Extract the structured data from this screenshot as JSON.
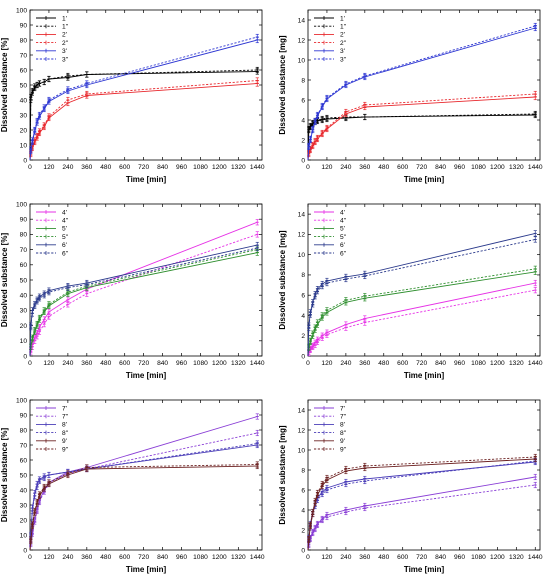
{
  "chart_data": [
    {
      "type": "line",
      "xlabel": "Time [min]",
      "ylabel": "Dissolved substance [%]",
      "xlim": [
        0,
        1470
      ],
      "ylim": [
        0,
        100
      ],
      "xticks": [
        0,
        120,
        240,
        360,
        480,
        600,
        720,
        840,
        960,
        1080,
        1200,
        1320,
        1440
      ],
      "yticks": [
        0,
        10,
        20,
        30,
        40,
        50,
        60,
        70,
        80,
        90,
        100
      ],
      "legend": "top-left",
      "x": [
        0,
        5,
        15,
        30,
        45,
        60,
        90,
        120,
        240,
        360,
        1440
      ],
      "series": [
        {
          "name": "1'",
          "color": "#000000",
          "dash": false,
          "values": [
            0,
            40,
            45,
            48,
            50,
            51,
            52,
            54,
            55,
            57,
            59
          ]
        },
        {
          "name": "1''",
          "color": "#000000",
          "dash": true,
          "values": [
            0,
            42,
            46,
            49,
            50,
            51,
            52,
            54,
            56,
            57,
            60
          ]
        },
        {
          "name": "2'",
          "color": "#e8282d",
          "dash": false,
          "values": [
            0,
            4,
            8,
            12,
            15,
            18,
            22,
            28,
            38,
            43,
            51
          ]
        },
        {
          "name": "2''",
          "color": "#e8282d",
          "dash": true,
          "values": [
            0,
            5,
            9,
            13,
            16,
            19,
            23,
            29,
            40,
            44,
            53
          ]
        },
        {
          "name": "3'",
          "color": "#2d36d2",
          "dash": false,
          "values": [
            0,
            6,
            12,
            19,
            25,
            29,
            34,
            39,
            46,
            50,
            80
          ]
        },
        {
          "name": "3''",
          "color": "#2d36d2",
          "dash": true,
          "values": [
            0,
            7,
            13,
            20,
            26,
            30,
            35,
            40,
            47,
            51,
            82
          ]
        }
      ]
    },
    {
      "type": "line",
      "xlabel": "Time [min]",
      "ylabel": "Dissolved substance [mg]",
      "xlim": [
        0,
        1470
      ],
      "ylim": [
        0,
        15
      ],
      "xticks": [
        0,
        120,
        240,
        360,
        480,
        600,
        720,
        840,
        960,
        1080,
        1200,
        1320,
        1440
      ],
      "yticks": [
        0,
        2,
        4,
        6,
        8,
        10,
        12,
        14
      ],
      "legend": "top-left",
      "x": [
        0,
        5,
        15,
        30,
        45,
        60,
        90,
        120,
        240,
        360,
        1440
      ],
      "series": [
        {
          "name": "1'",
          "color": "#000000",
          "dash": false,
          "values": [
            0,
            3.0,
            3.3,
            3.6,
            3.8,
            3.9,
            4.0,
            4.1,
            4.2,
            4.3,
            4.5
          ]
        },
        {
          "name": "1''",
          "color": "#000000",
          "dash": true,
          "values": [
            0,
            3.1,
            3.4,
            3.7,
            3.9,
            4.0,
            4.1,
            4.2,
            4.3,
            4.3,
            4.6
          ]
        },
        {
          "name": "2'",
          "color": "#e8282d",
          "dash": false,
          "values": [
            0,
            0.6,
            1.0,
            1.4,
            1.8,
            2.1,
            2.6,
            3.1,
            4.6,
            5.3,
            6.3
          ]
        },
        {
          "name": "2''",
          "color": "#e8282d",
          "dash": true,
          "values": [
            0,
            0.7,
            1.1,
            1.5,
            1.9,
            2.2,
            2.7,
            3.2,
            4.8,
            5.5,
            6.6
          ]
        },
        {
          "name": "3'",
          "color": "#2d36d2",
          "dash": false,
          "values": [
            0,
            1.3,
            2.0,
            3.0,
            3.8,
            4.4,
            5.3,
            6.1,
            7.5,
            8.3,
            13.2
          ]
        },
        {
          "name": "3''",
          "color": "#2d36d2",
          "dash": true,
          "values": [
            0,
            1.4,
            2.1,
            3.1,
            3.9,
            4.5,
            5.4,
            6.2,
            7.6,
            8.4,
            13.4
          ]
        }
      ]
    },
    {
      "type": "line",
      "xlabel": "Time [min]",
      "ylabel": "Dissolved substance [%]",
      "xlim": [
        0,
        1470
      ],
      "ylim": [
        0,
        100
      ],
      "xticks": [
        0,
        120,
        240,
        360,
        480,
        600,
        720,
        840,
        960,
        1080,
        1200,
        1320,
        1440
      ],
      "yticks": [
        0,
        10,
        20,
        30,
        40,
        50,
        60,
        70,
        80,
        90,
        100
      ],
      "legend": "top-left",
      "x": [
        0,
        5,
        15,
        30,
        45,
        60,
        90,
        120,
        240,
        360,
        1440
      ],
      "series": [
        {
          "name": "4'",
          "color": "#e632e6",
          "dash": false,
          "values": [
            0,
            4,
            8,
            12,
            15,
            19,
            24,
            29,
            37,
            44,
            88
          ]
        },
        {
          "name": "4''",
          "color": "#e632e6",
          "dash": true,
          "values": [
            0,
            3,
            6,
            10,
            13,
            16,
            21,
            26,
            34,
            41,
            80
          ]
        },
        {
          "name": "5'",
          "color": "#2f8f2f",
          "dash": false,
          "values": [
            0,
            6,
            11,
            16,
            20,
            24,
            29,
            33,
            41,
            45,
            68
          ]
        },
        {
          "name": "5''",
          "color": "#2f8f2f",
          "dash": true,
          "values": [
            0,
            6,
            12,
            17,
            21,
            25,
            30,
            34,
            42,
            46,
            70
          ]
        },
        {
          "name": "6'",
          "color": "#2b3a8c",
          "dash": false,
          "values": [
            0,
            20,
            30,
            34,
            37,
            39,
            41,
            43,
            46,
            48,
            73
          ]
        },
        {
          "name": "6''",
          "color": "#2b3a8c",
          "dash": true,
          "values": [
            0,
            19,
            28,
            33,
            36,
            38,
            40,
            42,
            45,
            47,
            71
          ]
        }
      ]
    },
    {
      "type": "line",
      "xlabel": "Time [min]",
      "ylabel": "Dissolved substance [mg]",
      "xlim": [
        0,
        1470
      ],
      "ylim": [
        0,
        15
      ],
      "xticks": [
        0,
        120,
        240,
        360,
        480,
        600,
        720,
        840,
        960,
        1080,
        1200,
        1320,
        1440
      ],
      "yticks": [
        0,
        2,
        4,
        6,
        8,
        10,
        12,
        14
      ],
      "legend": "top-left",
      "x": [
        0,
        5,
        15,
        30,
        45,
        60,
        90,
        120,
        240,
        360,
        1440
      ],
      "series": [
        {
          "name": "4'",
          "color": "#e632e6",
          "dash": false,
          "values": [
            0,
            0.4,
            0.7,
            1.0,
            1.3,
            1.6,
            2.0,
            2.3,
            3.1,
            3.7,
            7.2
          ]
        },
        {
          "name": "4''",
          "color": "#e632e6",
          "dash": true,
          "values": [
            0,
            0.3,
            0.6,
            0.9,
            1.1,
            1.4,
            1.8,
            2.1,
            2.8,
            3.3,
            6.5
          ]
        },
        {
          "name": "5'",
          "color": "#2f8f2f",
          "dash": false,
          "values": [
            0,
            0.8,
            1.4,
            2.0,
            2.6,
            3.1,
            3.8,
            4.3,
            5.3,
            5.7,
            8.3
          ]
        },
        {
          "name": "5''",
          "color": "#2f8f2f",
          "dash": true,
          "values": [
            0,
            0.9,
            1.5,
            2.2,
            2.8,
            3.3,
            4.0,
            4.5,
            5.5,
            5.9,
            8.6
          ]
        },
        {
          "name": "6'",
          "color": "#2b3a8c",
          "dash": false,
          "values": [
            0,
            3.0,
            4.3,
            5.3,
            6.1,
            6.6,
            7.1,
            7.4,
            7.8,
            8.1,
            12.1
          ]
        },
        {
          "name": "6''",
          "color": "#2b3a8c",
          "dash": true,
          "values": [
            0,
            2.8,
            4.1,
            5.1,
            5.9,
            6.4,
            6.9,
            7.2,
            7.6,
            7.9,
            11.5
          ]
        }
      ]
    },
    {
      "type": "line",
      "xlabel": "Time [min]",
      "ylabel": "Dissolved substance [%]",
      "xlim": [
        0,
        1470
      ],
      "ylim": [
        0,
        100
      ],
      "xticks": [
        0,
        120,
        240,
        360,
        480,
        600,
        720,
        840,
        960,
        1080,
        1200,
        1320,
        1440
      ],
      "yticks": [
        0,
        10,
        20,
        30,
        40,
        50,
        60,
        70,
        80,
        90,
        100
      ],
      "legend": "top-left",
      "x": [
        0,
        5,
        15,
        30,
        45,
        60,
        90,
        120,
        240,
        360,
        1440
      ],
      "series": [
        {
          "name": "7'",
          "color": "#8a3fd6",
          "dash": false,
          "values": [
            0,
            5,
            12,
            20,
            27,
            33,
            40,
            45,
            52,
            55,
            89
          ]
        },
        {
          "name": "7''",
          "color": "#8a3fd6",
          "dash": true,
          "values": [
            0,
            4,
            11,
            19,
            26,
            32,
            39,
            44,
            51,
            54,
            78
          ]
        },
        {
          "name": "8'",
          "color": "#4a3db8",
          "dash": false,
          "values": [
            0,
            10,
            28,
            38,
            44,
            47,
            49,
            50,
            52,
            54,
            70
          ]
        },
        {
          "name": "8''",
          "color": "#4a3db8",
          "dash": true,
          "values": [
            0,
            9,
            26,
            36,
            42,
            46,
            48,
            50,
            52,
            54,
            71
          ]
        },
        {
          "name": "9'",
          "color": "#6b2020",
          "dash": false,
          "values": [
            0,
            6,
            16,
            25,
            31,
            36,
            41,
            44,
            50,
            54,
            56
          ]
        },
        {
          "name": "9''",
          "color": "#6b2020",
          "dash": true,
          "values": [
            0,
            7,
            17,
            26,
            32,
            37,
            42,
            45,
            51,
            55,
            57
          ]
        }
      ]
    },
    {
      "type": "line",
      "xlabel": "Time [min]",
      "ylabel": "Dissolved substance [mg]",
      "xlim": [
        0,
        1470
      ],
      "ylim": [
        0,
        15
      ],
      "xticks": [
        0,
        120,
        240,
        360,
        480,
        600,
        720,
        840,
        960,
        1080,
        1200,
        1320,
        1440
      ],
      "yticks": [
        0,
        2,
        4,
        6,
        8,
        10,
        12,
        14
      ],
      "legend": "top-left",
      "x": [
        0,
        5,
        15,
        30,
        45,
        60,
        90,
        120,
        240,
        360,
        1440
      ],
      "series": [
        {
          "name": "7'",
          "color": "#8a3fd6",
          "dash": false,
          "values": [
            0,
            0.6,
            1.2,
            1.8,
            2.2,
            2.6,
            3.1,
            3.5,
            4.0,
            4.4,
            7.3
          ]
        },
        {
          "name": "7''",
          "color": "#8a3fd6",
          "dash": true,
          "values": [
            0,
            0.5,
            1.1,
            1.7,
            2.1,
            2.5,
            3.0,
            3.3,
            3.8,
            4.2,
            6.5
          ]
        },
        {
          "name": "8'",
          "color": "#4a3db8",
          "dash": false,
          "values": [
            0,
            1.2,
            2.6,
            3.8,
            4.6,
            5.2,
            5.8,
            6.2,
            6.8,
            7.1,
            8.8
          ]
        },
        {
          "name": "8''",
          "color": "#4a3db8",
          "dash": true,
          "values": [
            0,
            1.1,
            2.4,
            3.6,
            4.4,
            5.0,
            5.6,
            6.0,
            6.6,
            6.9,
            8.9
          ]
        },
        {
          "name": "9'",
          "color": "#6b2020",
          "dash": false,
          "values": [
            0,
            1.0,
            2.4,
            3.6,
            4.7,
            5.5,
            6.4,
            7.0,
            7.9,
            8.2,
            9.1
          ]
        },
        {
          "name": "9''",
          "color": "#6b2020",
          "dash": true,
          "values": [
            0,
            1.1,
            2.5,
            3.8,
            4.9,
            5.7,
            6.6,
            7.2,
            8.1,
            8.4,
            9.3
          ]
        }
      ]
    }
  ]
}
